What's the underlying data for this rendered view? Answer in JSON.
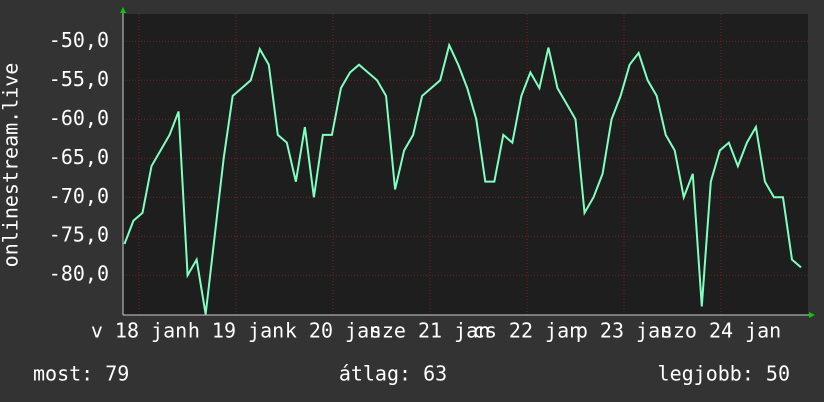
{
  "chart_data": {
    "type": "line",
    "ylabel": "onlinestream.live",
    "annotations": [
      "most: 79",
      "átlag: 63",
      "legjobb: 50"
    ],
    "xlim": [
      -0.165,
      6.897
    ],
    "xticks": [
      {
        "value": 0,
        "label": "v 18 jan"
      },
      {
        "value": 1,
        "label": "h 19 jan"
      },
      {
        "value": 2,
        "label": "k 20 jan"
      },
      {
        "value": 3,
        "label": "sze 21 jan"
      },
      {
        "value": 4,
        "label": "cs 22 jan"
      },
      {
        "value": 5,
        "label": "p 23 jan"
      },
      {
        "value": 6,
        "label": "szo 24 jan"
      }
    ],
    "ylim": [
      -85.1,
      -46.5
    ],
    "yticks": [
      {
        "value": -50,
        "label": "-50,0"
      },
      {
        "value": -55,
        "label": "-55,0"
      },
      {
        "value": -60,
        "label": "-60,0"
      },
      {
        "value": -65,
        "label": "-65,0"
      },
      {
        "value": -70,
        "label": "-70,0"
      },
      {
        "value": -75,
        "label": "-75,0"
      },
      {
        "value": -80,
        "label": "-80,0"
      }
    ],
    "grid": true,
    "x": [
      -0.15,
      -0.057,
      0.036,
      0.129,
      0.222,
      0.315,
      0.408,
      0.501,
      0.594,
      0.687,
      0.78,
      0.873,
      0.966,
      1.059,
      1.152,
      1.245,
      1.338,
      1.431,
      1.524,
      1.617,
      1.71,
      1.803,
      1.896,
      1.989,
      2.082,
      2.175,
      2.268,
      2.361,
      2.454,
      2.547,
      2.64,
      2.733,
      2.826,
      2.919,
      3.012,
      3.105,
      3.198,
      3.291,
      3.384,
      3.477,
      3.57,
      3.663,
      3.756,
      3.849,
      3.942,
      4.035,
      4.128,
      4.221,
      4.314,
      4.407,
      4.5,
      4.593,
      4.686,
      4.779,
      4.872,
      4.965,
      5.058,
      5.151,
      5.244,
      5.337,
      5.43,
      5.523,
      5.616,
      5.709,
      5.802,
      5.895,
      5.988,
      6.081,
      6.174,
      6.267,
      6.36,
      6.453,
      6.546,
      6.639,
      6.732,
      6.825
    ],
    "series": [
      {
        "color": "#80ffc0",
        "values": [
          -76,
          -73,
          -72,
          -66,
          -64,
          -62,
          -59,
          -80,
          -78,
          -85,
          -75,
          -65,
          -57,
          -56,
          -55,
          -51,
          -53,
          -62,
          -63,
          -68,
          -61,
          -70,
          -62,
          -62,
          -56,
          -54,
          -53,
          -54,
          -55,
          -57,
          -69,
          -64,
          -62,
          -57,
          -56,
          -55,
          -50.5,
          -53,
          -56,
          -60,
          -68,
          -68,
          -62,
          -63,
          -57,
          -54,
          -56,
          -50.8,
          -56,
          -58,
          -60,
          -72,
          -70,
          -67,
          -60,
          -57,
          -53,
          -51.5,
          -55,
          -57,
          -62,
          -64,
          -70,
          -67,
          -84,
          -68,
          -64,
          -63,
          -66,
          -63,
          -61,
          -68,
          -70,
          -70,
          -78,
          -79
        ]
      }
    ]
  }
}
